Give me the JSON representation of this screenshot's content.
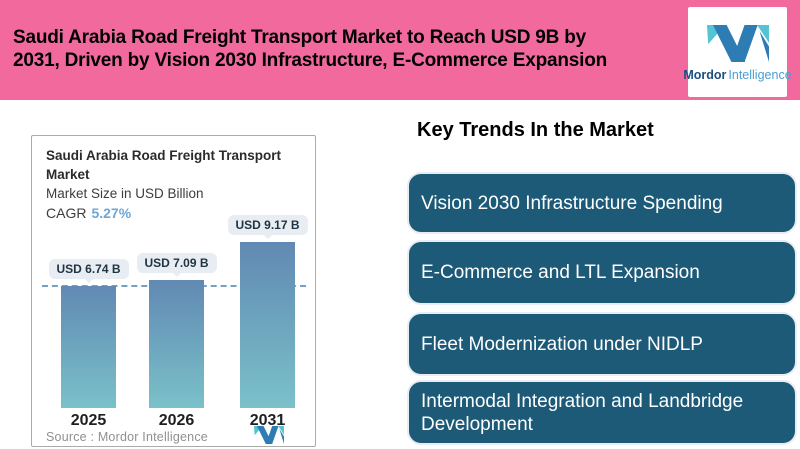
{
  "header": {
    "title_line1": "Saudi Arabia Road Freight Transport Market to Reach USD 9B by",
    "title_line2": "2031, Driven by Vision 2030 Infrastructure, E-Commerce Expansion"
  },
  "brand": {
    "name_bold": "Mordor",
    "name_light": "Intelligence"
  },
  "chart": {
    "title_line1": "Saudi Arabia Road Freight Transport",
    "title_line2": "Market",
    "subtitle": "Market Size in USD Billion",
    "cagr_label": "CAGR",
    "cagr_value": "5.27%",
    "source": "Source :  Mordor Intelligence"
  },
  "chart_data": {
    "type": "bar",
    "title": "Saudi Arabia Road Freight Transport Market",
    "subtitle": "Market Size in USD Billion",
    "unit": "USD Billion",
    "cagr_percent": 5.27,
    "categories": [
      "2025",
      "2026",
      "2031"
    ],
    "values": [
      6.74,
      7.09,
      9.17
    ],
    "bar_labels": [
      "USD 6.74 B",
      "USD 7.09 B",
      "USD 9.17 B"
    ],
    "ylim": [
      0,
      10
    ],
    "reference_line_value": 6.74,
    "grid": false,
    "legend": false
  },
  "trends": {
    "heading": "Key Trends In the Market",
    "items": [
      "Vision 2030 Infrastructure Spending",
      "E-Commerce and LTL Expansion",
      "Fleet Modernization under NIDLP",
      "Intermodal Integration and Landbridge Development"
    ]
  },
  "colors": {
    "header_background": "#f2699e",
    "headline_text": "#000000",
    "trend_card_background": "#1d5a78",
    "trend_card_text": "#ffffff",
    "bar_gradient_top": "#6189b3",
    "bar_gradient_bottom": "#7ac1c9",
    "reference_line": "#74a0c4",
    "value_pill_background": "#e7edf2",
    "cagr_value_text": "#6fa6d2",
    "brand_blue": "#2e7cb4",
    "brand_teal": "#54c3d4",
    "brand_text_dark": "#1c4e7e",
    "brand_text_light": "#4a9fd0"
  }
}
